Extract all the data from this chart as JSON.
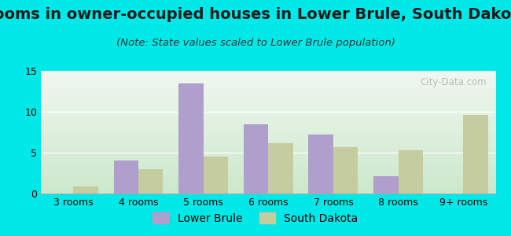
{
  "title": "Rooms in owner-occupied houses in Lower Brule, South Dakota",
  "subtitle": "(Note: State values scaled to Lower Brule population)",
  "categories": [
    "3 rooms",
    "4 rooms",
    "5 rooms",
    "6 rooms",
    "7 rooms",
    "8 rooms",
    "9+ rooms"
  ],
  "lower_brule": [
    0,
    4.0,
    13.5,
    8.5,
    7.2,
    2.1,
    0
  ],
  "south_dakota": [
    0.9,
    3.0,
    4.5,
    6.2,
    5.7,
    5.3,
    9.6
  ],
  "color_lb": "#b09fcc",
  "color_sd": "#c5cc9f",
  "background_outer": "#00e8e8",
  "background_plot_top": "#f0f8f0",
  "background_plot_bottom": "#cce8cc",
  "ylim": [
    0,
    15
  ],
  "yticks": [
    0,
    5,
    10,
    15
  ],
  "bar_width": 0.38,
  "legend_lb": "Lower Brule",
  "legend_sd": "South Dakota",
  "title_fontsize": 14,
  "subtitle_fontsize": 9.5,
  "tick_fontsize": 9,
  "legend_fontsize": 10,
  "watermark": "City-Data.com"
}
